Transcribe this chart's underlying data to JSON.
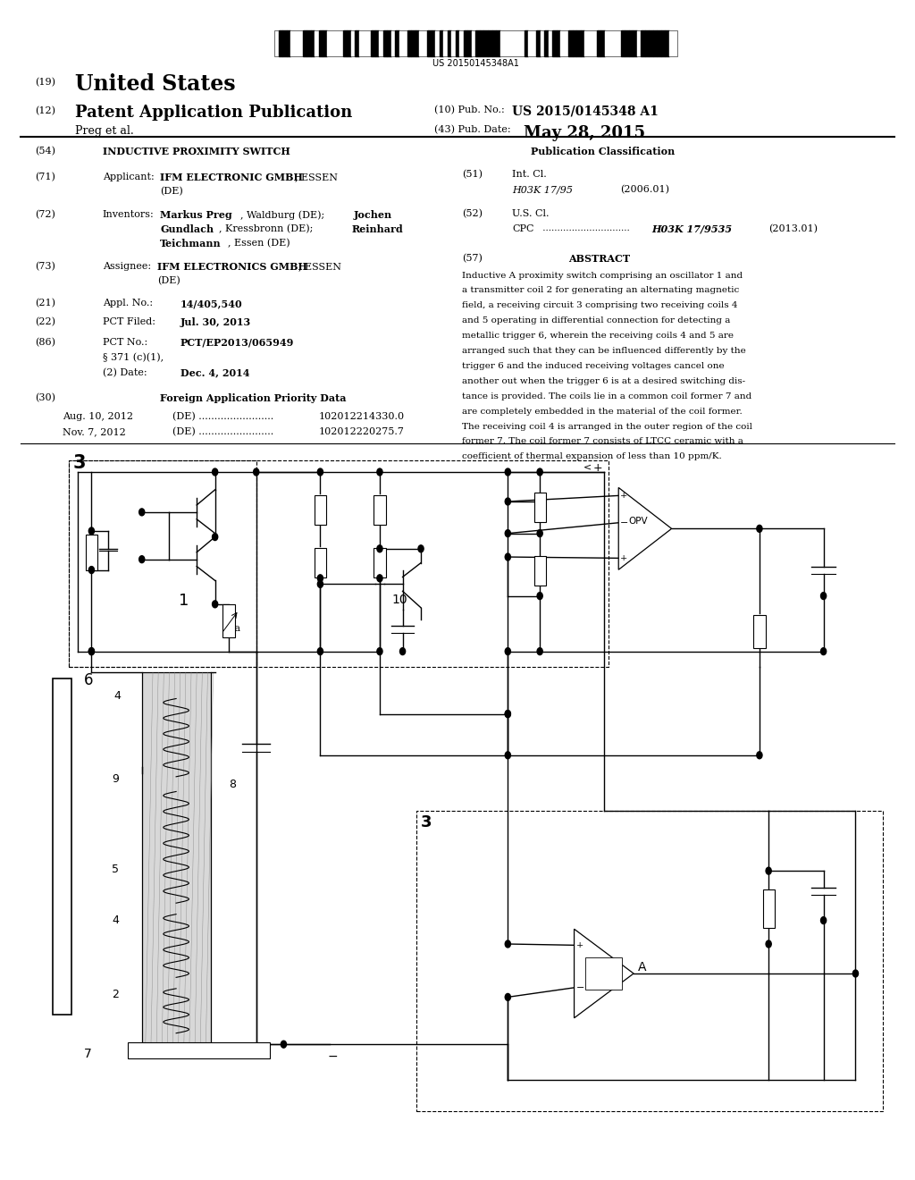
{
  "barcode_text": "US 20150145348A1",
  "pub_no": "US 2015/0145348 A1",
  "pub_date": "May 28, 2015",
  "appl_no": "14/405,540",
  "pct_filed": "Jul. 30, 2013",
  "pct_no": "PCT/EP2013/065949",
  "dec_date": "Dec. 4, 2014",
  "foreign_app1_date": "Aug. 10, 2012",
  "foreign_app1_num": "102012214330.0",
  "foreign_app2_date": "Nov. 7, 2012",
  "foreign_app2_num": "102012220275.7",
  "int_cl": "H03K 17/95",
  "int_cl_year": "(2006.01)",
  "cpc_value": "H03K 17/9535",
  "cpc_year": "(2013.01)",
  "abstract_lines": [
    "Inductive A proximity switch comprising an oscillator 1 and",
    "a transmitter coil 2 for generating an alternating magnetic",
    "field, a receiving circuit 3 comprising two receiving coils 4",
    "and 5 operating in differential connection for detecting a",
    "metallic trigger 6, wherein the receiving coils 4 and 5 are",
    "arranged such that they can be influenced differently by the",
    "trigger 6 and the induced receiving voltages cancel one",
    "another out when the trigger 6 is at a desired switching dis-",
    "tance is provided. The coils lie in a common coil former 7 and",
    "are completely embedded in the material of the coil former.",
    "The receiving coil 4 is arranged in the outer region of the coil",
    "former 7. The coil former 7 consists of LTCC ceramic with a",
    "coefficient of thermal expansion of less than 10 ppm/K."
  ],
  "bg_color": "#ffffff"
}
